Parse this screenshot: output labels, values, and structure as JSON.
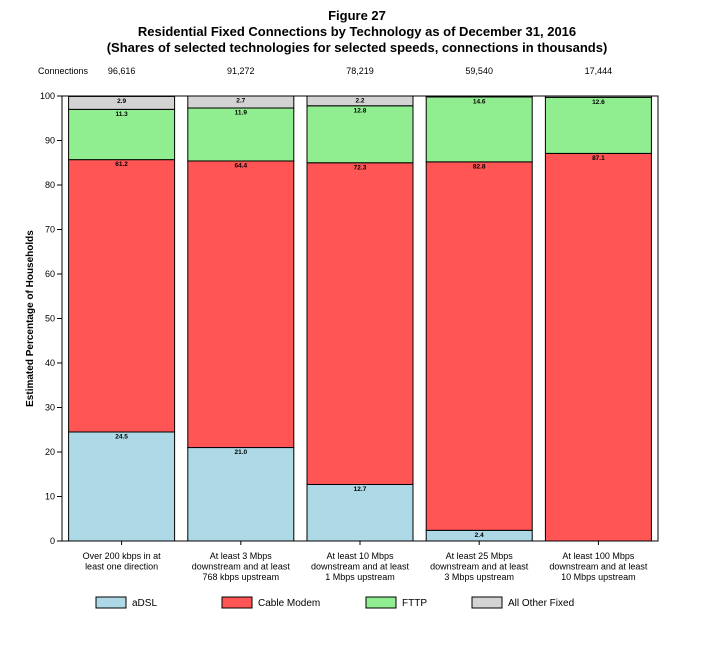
{
  "header": {
    "figure_label": "Figure 27",
    "title": "Residential Fixed Connections by Technology as of December 31, 2016",
    "subtitle": "(Shares of selected technologies for selected speeds, connections in thousands)"
  },
  "connections_label": "Connections",
  "chart_data": {
    "type": "bar",
    "stacked": true,
    "ylabel": "Estimated Percentage of Households",
    "ylim": [
      0,
      100
    ],
    "yticks": [
      0,
      10,
      20,
      30,
      40,
      50,
      60,
      70,
      80,
      90,
      100
    ],
    "categories": [
      [
        "Over 200 kbps in at",
        "least one direction"
      ],
      [
        "At least 3 Mbps",
        "downstream and at least",
        "768 kbps upstream"
      ],
      [
        "At least 10 Mbps",
        "downstream and at least",
        "1 Mbps upstream"
      ],
      [
        "At least 25 Mbps",
        "downstream and at least",
        "3 Mbps upstream"
      ],
      [
        "At least 100 Mbps",
        "downstream and at least",
        "10 Mbps upstream"
      ]
    ],
    "connections": [
      "96,616",
      "91,272",
      "78,219",
      "59,540",
      "17,444"
    ],
    "series": [
      {
        "name": "aDSL",
        "color": "#add8e6",
        "values": [
          24.5,
          21.0,
          12.7,
          2.4,
          0.0
        ],
        "labels": [
          "24.5",
          "21.0",
          "12.7",
          "2.4",
          ""
        ]
      },
      {
        "name": "Cable Modem",
        "color": "#ff5555",
        "values": [
          61.2,
          64.4,
          72.3,
          82.8,
          87.1
        ],
        "labels": [
          "61.2",
          "64.4",
          "72.3",
          "82.8",
          "87.1"
        ]
      },
      {
        "name": "FTTP",
        "color": "#90ee90",
        "values": [
          11.3,
          11.9,
          12.8,
          14.6,
          12.6
        ],
        "labels": [
          "11.3",
          "11.9",
          "12.8",
          "14.6",
          "12.6"
        ]
      },
      {
        "name": "All Other Fixed",
        "color": "#d3d3d3",
        "values": [
          2.9,
          2.7,
          2.2,
          0.2,
          0.3
        ],
        "labels": [
          "2.9",
          "2.7",
          "2.2",
          "",
          ""
        ]
      }
    ]
  }
}
